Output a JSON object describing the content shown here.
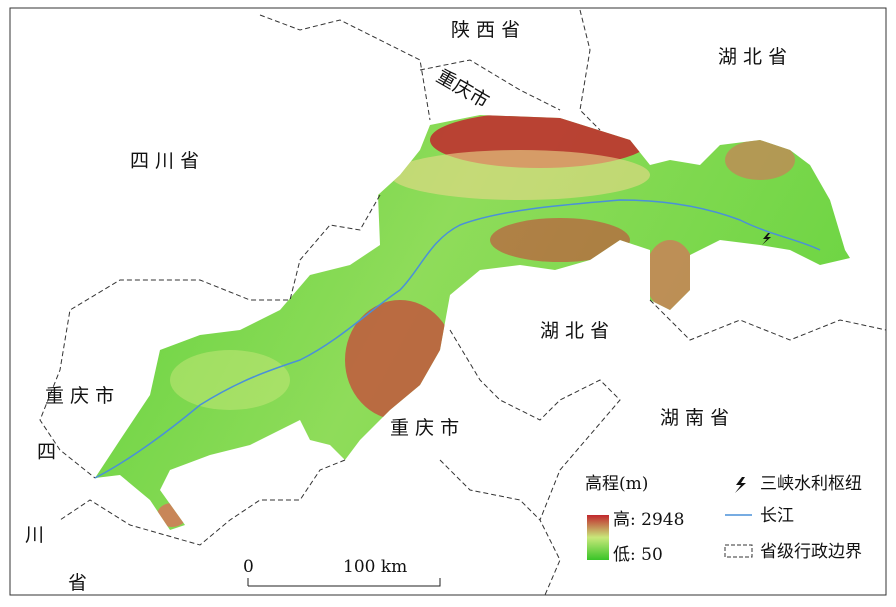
{
  "map": {
    "place_labels": [
      "陕 西 省",
      "湖 北 省",
      "重庆市",
      "四 川 省",
      "湖 北 省",
      "湖 南 省",
      "重 庆 市",
      "重 庆 市",
      "四",
      "川",
      "省"
    ]
  },
  "legend": {
    "title": "高程(m)",
    "high": "高: 2948",
    "low": "低: 50",
    "items": [
      "三峡水利枢纽",
      "长江",
      "省级行政边界"
    ]
  },
  "scale_bar": {
    "ticks": [
      "0",
      "100 km"
    ]
  }
}
